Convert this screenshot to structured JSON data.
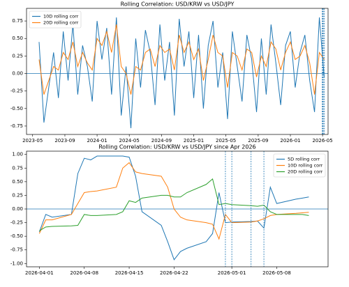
{
  "chart_data": [
    {
      "type": "line",
      "title": "Rolling Correlation: USD/KRW vs USD/JPY",
      "x": [
        2023.4,
        2023.45,
        2023.5,
        2023.55,
        2023.6,
        2023.65,
        2023.7,
        2023.75,
        2023.8,
        2023.85,
        2023.9,
        2023.95,
        2024.0,
        2024.05,
        2024.1,
        2024.15,
        2024.2,
        2024.25,
        2024.3,
        2024.35,
        2024.4,
        2024.45,
        2024.5,
        2024.55,
        2024.6,
        2024.65,
        2024.7,
        2024.75,
        2024.8,
        2024.85,
        2024.9,
        2024.95,
        2025.0,
        2025.05,
        2025.1,
        2025.15,
        2025.2,
        2025.25,
        2025.3,
        2025.35,
        2025.4,
        2025.45,
        2025.5,
        2025.55,
        2025.6,
        2025.65,
        2025.7,
        2025.75,
        2025.8,
        2025.85,
        2025.9,
        2025.95,
        2026.0,
        2026.05,
        2026.1,
        2026.15,
        2026.2,
        2026.25,
        2026.3,
        2026.35
      ],
      "series": [
        {
          "name": "10D rolling corr",
          "color": "#1f77b4",
          "values": [
            0.45,
            -0.7,
            -0.2,
            0.3,
            -0.35,
            0.6,
            -0.1,
            0.7,
            -0.3,
            0.4,
            0.1,
            -0.4,
            0.75,
            0.2,
            0.65,
            -0.3,
            0.8,
            -0.6,
            0.1,
            -0.78,
            0.5,
            -0.2,
            0.62,
            0.3,
            -0.45,
            0.7,
            -0.1,
            0.45,
            -0.6,
            0.78,
            0.1,
            0.6,
            -0.35,
            0.55,
            -0.5,
            0.4,
            0.75,
            -0.2,
            0.3,
            -0.65,
            0.6,
            0.1,
            -0.4,
            0.55,
            0.2,
            -0.55,
            0.5,
            -0.3,
            0.7,
            0.15,
            -0.45,
            0.4,
            0.6,
            -0.2,
            0.3,
            0.55,
            -0.1,
            -0.55,
            0.8,
            -0.05
          ]
        },
        {
          "name": "20D rolling corr",
          "color": "#ff7f0e",
          "values": [
            0.2,
            -0.3,
            -0.1,
            0.1,
            0.05,
            0.3,
            0.2,
            0.45,
            0.1,
            0.3,
            0.15,
            0.05,
            0.5,
            0.4,
            0.6,
            0.3,
            0.7,
            0.1,
            0.0,
            -0.3,
            0.1,
            0.05,
            0.3,
            0.35,
            0.1,
            0.4,
            0.3,
            0.35,
            0.05,
            0.55,
            0.3,
            0.45,
            0.2,
            0.35,
            -0.1,
            0.2,
            0.55,
            0.3,
            0.25,
            -0.2,
            0.3,
            0.25,
            0.05,
            0.35,
            0.3,
            -0.05,
            0.25,
            0.1,
            0.45,
            0.35,
            0.05,
            0.3,
            0.45,
            0.2,
            0.25,
            0.4,
            0.15,
            -0.3,
            0.3,
            0.2
          ]
        }
      ],
      "xlim": [
        2023.27,
        2026.39
      ],
      "xticks": [
        {
          "value": 2023.333,
          "label": "2023-05"
        },
        {
          "value": 2023.667,
          "label": "2023-09"
        },
        {
          "value": 2024.0,
          "label": "2024-01"
        },
        {
          "value": 2024.333,
          "label": "2024-05"
        },
        {
          "value": 2024.667,
          "label": "2024-09"
        },
        {
          "value": 2025.0,
          "label": "2025-01"
        },
        {
          "value": 2025.333,
          "label": "2025-05"
        },
        {
          "value": 2025.667,
          "label": "2025-09"
        },
        {
          "value": 2026.0,
          "label": "2026-01"
        },
        {
          "value": 2026.333,
          "label": "2026-05"
        }
      ],
      "ylim": [
        -0.87,
        0.93
      ],
      "yticks": [
        -0.75,
        {
          "value": -0.5,
          "label": "-0.50"
        },
        -0.25,
        {
          "value": 0,
          "label": "0.00"
        },
        0.25,
        {
          "value": 0.5,
          "label": "0.50"
        },
        0.75
      ],
      "hline": 0,
      "vlines": [
        2026.33,
        2026.335,
        2026.34,
        2026.35
      ],
      "legend": "upper left"
    },
    {
      "type": "line",
      "title": "Rolling Correlation: USD/KRW vs USD/JPY since Apr 2026",
      "x": [
        "2026-04-01",
        "2026-04-02",
        "2026-04-03",
        "2026-04-06",
        "2026-04-07",
        "2026-04-08",
        "2026-04-09",
        "2026-04-10",
        "2026-04-13",
        "2026-04-14",
        "2026-04-15",
        "2026-04-16",
        "2026-04-17",
        "2026-04-20",
        "2026-04-21",
        "2026-04-22",
        "2026-04-23",
        "2026-04-24",
        "2026-04-27",
        "2026-04-28",
        "2026-04-29",
        "2026-04-30",
        "2026-05-01",
        "2026-05-04",
        "2026-05-05",
        "2026-05-06",
        "2026-05-07",
        "2026-05-08",
        "2026-05-11",
        "2026-05-12",
        "2026-05-13"
      ],
      "series": [
        {
          "name": "5D rolling corr",
          "color": "#1f77b4",
          "values": [
            -0.42,
            -0.1,
            -0.15,
            -0.1,
            0.65,
            0.93,
            0.9,
            0.97,
            0.97,
            0.97,
            0.95,
            0.6,
            -0.05,
            -0.3,
            -0.6,
            -0.93,
            -0.78,
            -0.72,
            -0.6,
            -0.45,
            0.3,
            -0.25,
            -0.24,
            -0.23,
            -0.22,
            -0.35,
            0.4,
            0.1,
            0.18,
            0.2,
            0.22
          ]
        },
        {
          "name": "10D rolling corr",
          "color": "#ff7f0e",
          "values": [
            -0.45,
            -0.2,
            -0.2,
            -0.1,
            0.1,
            0.3,
            0.32,
            0.33,
            0.4,
            0.75,
            0.85,
            0.68,
            0.65,
            0.6,
            0.4,
            0.0,
            -0.15,
            -0.2,
            -0.25,
            -0.28,
            -0.55,
            -0.1,
            -0.25,
            -0.24,
            -0.22,
            -0.18,
            -0.12,
            -0.1,
            -0.08,
            -0.07,
            -0.06
          ]
        },
        {
          "name": "20D rolling corr",
          "color": "#2ca02c",
          "values": [
            -0.4,
            -0.33,
            -0.32,
            -0.31,
            -0.3,
            -0.1,
            -0.12,
            -0.12,
            -0.1,
            -0.05,
            0.15,
            0.12,
            0.2,
            0.25,
            0.25,
            0.22,
            0.22,
            0.3,
            0.45,
            0.55,
            0.08,
            0.1,
            0.08,
            0.06,
            0.05,
            0.07,
            -0.05,
            -0.1,
            -0.1,
            -0.1,
            -0.12
          ]
        }
      ],
      "xlim": [
        "2026-03-30",
        "2026-05-16"
      ],
      "xticks": [
        "2026-04-01",
        "2026-04-08",
        "2026-04-15",
        "2026-04-22",
        "2026-05-01",
        "2026-05-08"
      ],
      "ylim": [
        -1.06,
        1.06
      ],
      "yticks": [
        {
          "value": -1,
          "label": "-1.00"
        },
        -0.75,
        {
          "value": -0.5,
          "label": "-0.50"
        },
        -0.25,
        {
          "value": 0,
          "label": "0.00"
        },
        0.25,
        {
          "value": 0.5,
          "label": "0.50"
        },
        0.75,
        {
          "value": 1,
          "label": "1.00"
        }
      ],
      "hline": 0,
      "vlines": [
        "2026-04-30",
        "2026-05-01",
        "2026-05-04",
        "2026-05-06"
      ],
      "legend": "upper right"
    }
  ]
}
